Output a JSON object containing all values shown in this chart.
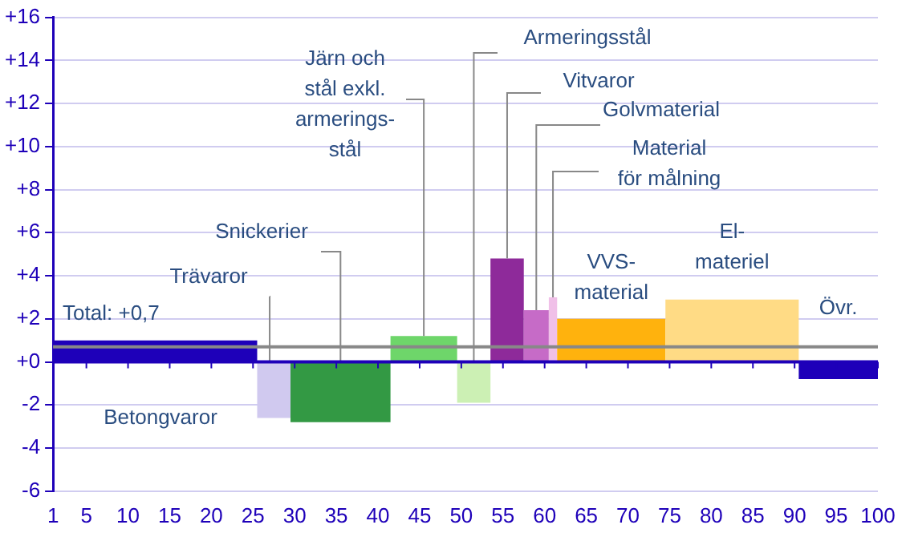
{
  "chart_data": {
    "type": "histogram",
    "bins": [
      1,
      25.5,
      29.5,
      41.5,
      49.5,
      53.5,
      57.5,
      60.5,
      61.5,
      74.5,
      90.5,
      100
    ],
    "values": [
      1.0,
      -2.6,
      -2.8,
      1.2,
      -1.9,
      4.8,
      2.4,
      3.0,
      2.0,
      2.9,
      -0.8
    ],
    "colors": [
      "#1e00b9",
      "#d0c9ef",
      "#339944",
      "#6ed66a",
      "#ccf0b4",
      "#8e2a9a",
      "#c66bc7",
      "#f0c0e8",
      "#ffb20d",
      "#ffdb85",
      "#1e00b9"
    ],
    "xlim": [
      1,
      100
    ],
    "xticks": [
      1,
      5,
      10,
      15,
      20,
      25,
      30,
      35,
      40,
      45,
      50,
      55,
      60,
      65,
      70,
      75,
      80,
      85,
      90,
      95,
      100
    ],
    "ylim": [
      -6,
      16
    ],
    "yticks": [
      {
        "value": -6,
        "label": "-6"
      },
      {
        "value": -4,
        "label": "-4"
      },
      {
        "value": -2,
        "label": "-2"
      },
      {
        "value": 0,
        "label": "+0"
      },
      {
        "value": 2,
        "label": "+2"
      },
      {
        "value": 4,
        "label": "+4"
      },
      {
        "value": 6,
        "label": "+6"
      },
      {
        "value": 8,
        "label": "+8"
      },
      {
        "value": 10,
        "label": "+10"
      },
      {
        "value": 12,
        "label": "+12"
      },
      {
        "value": 14,
        "label": "+14"
      },
      {
        "value": 16,
        "label": "+16"
      }
    ],
    "grid": "y",
    "ref_lines": [
      {
        "axis": "y",
        "value": 0,
        "color": "#1e00b9"
      },
      {
        "axis": "y",
        "value": 0.7,
        "label": "Total: +0,7",
        "color": "#888888"
      }
    ],
    "annotations": [
      "Betongvaror",
      {
        "text": "Trävaror",
        "x": 27,
        "y": 0
      },
      {
        "text": "Snickerier",
        "x": 35.5,
        "y": 0
      },
      {
        "text": "Järn och\nstål exkl.\narmerings-\nstål",
        "x": 45.5,
        "y": 1.2
      },
      {
        "text": "Armeringsstål",
        "x": 51.5,
        "y": 0
      },
      {
        "text": "Vitvaror",
        "x": 55.5,
        "y": 4.8
      },
      {
        "text": "Golvmaterial",
        "x": 59,
        "y": 2.4
      },
      {
        "text": "Material\nför målning",
        "x": 61,
        "y": 3.0
      },
      {
        "text": "VVS-\nmaterial",
        "x": 68,
        "y": 2.0
      },
      {
        "text": "El-\nmateriel",
        "x": 82.5,
        "y": 2.9
      },
      {
        "text": "Övr.",
        "x": 95.25,
        "y": -0.8
      }
    ]
  }
}
